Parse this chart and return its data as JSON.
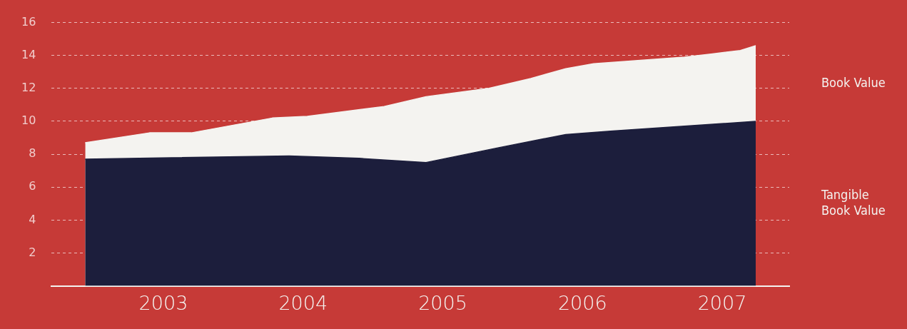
{
  "chart_data": {
    "type": "area",
    "xlim": [
      2002.2,
      2007.48
    ],
    "xticks": [
      2003,
      2004,
      2005,
      2006,
      2007
    ],
    "ylim": [
      0,
      16
    ],
    "yticks": [
      {
        "value": 0,
        "label": null
      },
      2,
      4,
      6,
      8,
      10,
      12,
      14,
      16
    ],
    "grid": "y",
    "legend": false,
    "line_style": "dashed",
    "series": [
      {
        "name": "Book Value",
        "color": "#f4f3f0",
        "x": [
          2002.44,
          2002.9,
          2003.2,
          2003.78,
          2004.03,
          2004.58,
          2004.88,
          2005.33,
          2005.63,
          2005.88,
          2006.08,
          2006.73,
          2006.93,
          2007.13,
          2007.24
        ],
        "values": [
          8.7,
          9.3,
          9.3,
          10.2,
          10.3,
          10.9,
          11.5,
          12.0,
          12.6,
          13.2,
          13.5,
          13.9,
          14.1,
          14.3,
          14.6
        ]
      },
      {
        "name": "Tangible Book Value",
        "color": "#1c1e3c",
        "x": [
          2002.44,
          2003.9,
          2004.4,
          2004.88,
          2005.4,
          2005.88,
          2006.2,
          2007.24
        ],
        "values": [
          7.7,
          7.9,
          7.75,
          7.5,
          8.4,
          9.2,
          9.4,
          10.0
        ]
      }
    ]
  }
}
